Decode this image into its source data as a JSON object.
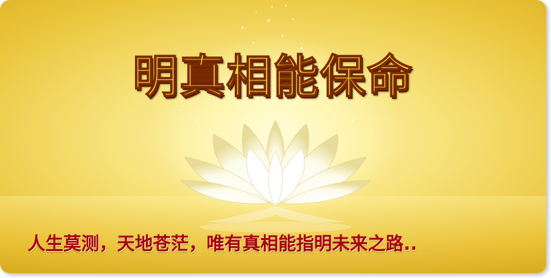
{
  "banner": {
    "title": "明真相能保命",
    "subtitle": "人生莫测，天地苍茫，唯有真相能指明未来之路.."
  },
  "colors": {
    "background_gold": "#eac53a",
    "title_yellow": "#ffe23a",
    "title_outline": "#7a2a00",
    "subtitle_red": "#a8000c"
  },
  "icons": {
    "lotus": "lotus-flower-illustration"
  }
}
